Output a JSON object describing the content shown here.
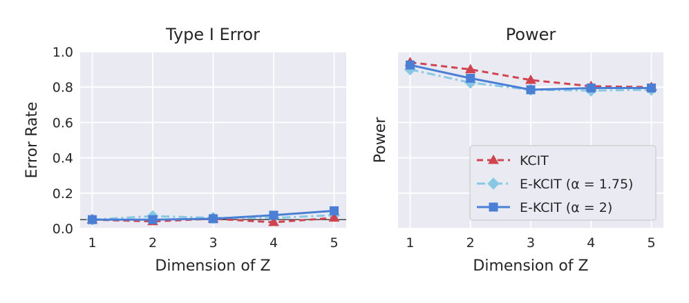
{
  "chart_data": [
    {
      "type": "line",
      "title": "Type I Error",
      "xlabel": "Dimension of Z",
      "ylabel": "Error Rate",
      "x": [
        1,
        2,
        3,
        4,
        5
      ],
      "xlim": [
        0.8,
        5.2
      ],
      "ylim": [
        0.0,
        1.0
      ],
      "yticks": [
        "0.0",
        "0.2",
        "0.4",
        "0.6",
        "0.8",
        "1.0"
      ],
      "ytick_values": [
        0,
        0.2,
        0.4,
        0.6,
        0.8,
        1.0
      ],
      "xticks": [
        "1",
        "2",
        "3",
        "4",
        "5"
      ],
      "reference_line": 0.05,
      "grid": true,
      "series": [
        {
          "key": "kcit",
          "values": [
            0.05,
            0.04,
            0.055,
            0.035,
            0.06
          ]
        },
        {
          "key": "ekcit175",
          "values": [
            0.05,
            0.07,
            0.06,
            0.06,
            0.075
          ]
        },
        {
          "key": "ekcit2",
          "values": [
            0.05,
            0.05,
            0.055,
            0.075,
            0.1
          ]
        }
      ]
    },
    {
      "type": "line",
      "title": "Power",
      "xlabel": "Dimension of Z",
      "ylabel": "Power",
      "x": [
        1,
        2,
        3,
        4,
        5
      ],
      "xlim": [
        0.8,
        5.2
      ],
      "ylim": [
        0.0,
        1.0
      ],
      "ytick_values": [
        0,
        0.2,
        0.4,
        0.6,
        0.8,
        1.0
      ],
      "xticks": [
        "1",
        "2",
        "3",
        "4",
        "5"
      ],
      "grid": true,
      "legend_placement": "lower-right",
      "series": [
        {
          "key": "kcit",
          "name": "KCIT",
          "values": [
            0.94,
            0.9,
            0.84,
            0.805,
            0.8
          ]
        },
        {
          "key": "ekcit175",
          "name": "E-KCIT (α = 1.75)",
          "values": [
            0.9,
            0.825,
            0.785,
            0.78,
            0.785
          ]
        },
        {
          "key": "ekcit2",
          "name": "E-KCIT (α = 2)",
          "values": [
            0.925,
            0.85,
            0.785,
            0.795,
            0.795
          ]
        }
      ]
    }
  ],
  "series_styles": {
    "kcit": {
      "color": "#d1434f",
      "dash": "9,6",
      "marker": "triangle-icon"
    },
    "ekcit175": {
      "color": "#87c8e5",
      "dash": "12,5,3,5",
      "marker": "diamond-icon"
    },
    "ekcit2": {
      "color": "#4a7fd6",
      "dash": "",
      "marker": "square-icon"
    }
  }
}
